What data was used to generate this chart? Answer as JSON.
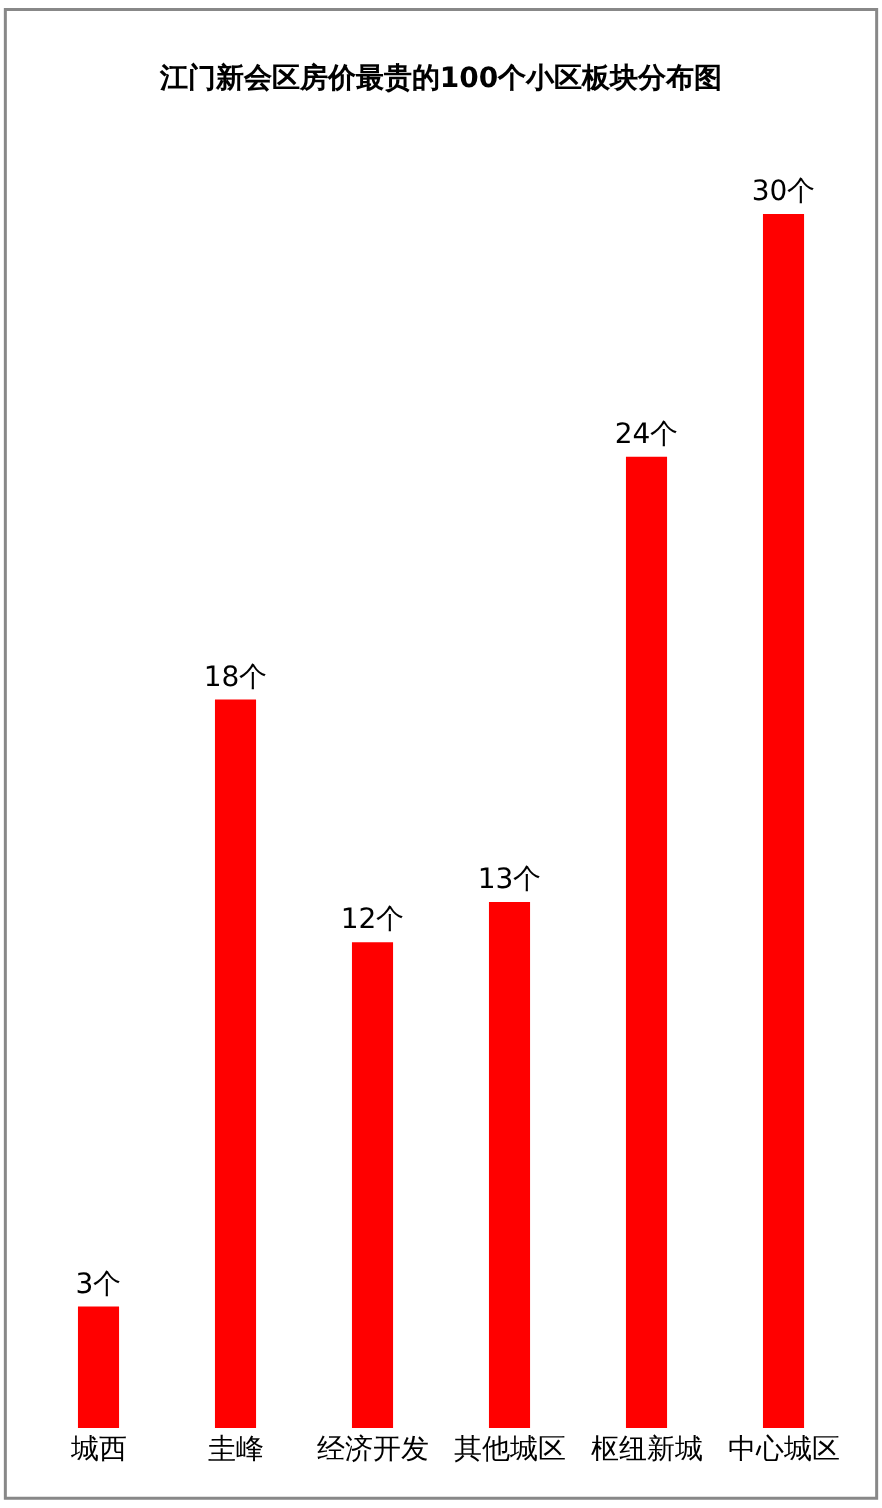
{
  "chart_data": {
    "type": "bar",
    "title": "江门新会区房价最贵的100个小区板块分布图",
    "categories": [
      "城西",
      "圭峰",
      "经济开发",
      "其他城区",
      "枢纽新城",
      "中心城区"
    ],
    "values": [
      3,
      18,
      12,
      13,
      24,
      30
    ],
    "value_labels": [
      "3个",
      "18个",
      "12个",
      "13个",
      "24个",
      "30个"
    ],
    "color": "#ff0000"
  }
}
